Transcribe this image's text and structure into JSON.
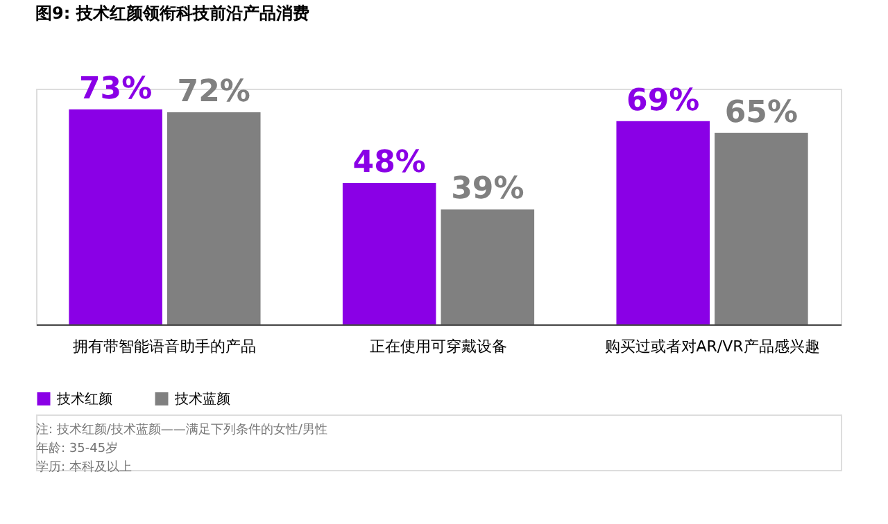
{
  "chart_data": {
    "type": "bar",
    "title": "图9: 技术红颜领衔科技前沿产品消费",
    "categories": [
      "拥有带智能语音助手的产品",
      "正在使用可穿戴设备",
      "购买过或者对AR/VR产品感兴趣"
    ],
    "series": [
      {
        "name": "技术红颜",
        "color": "#8a00e6",
        "values": [
          73,
          48,
          69
        ],
        "value_labels": [
          "73%",
          "48%",
          "69%"
        ]
      },
      {
        "name": "技术蓝颜",
        "color": "#808080",
        "values": [
          72,
          39,
          65
        ],
        "value_labels": [
          "72%",
          "39%",
          "65%"
        ]
      }
    ],
    "legend": "bottom left",
    "grid": false,
    "annotations": [
      "注: 技术红颜/技术蓝颜——满足下列条件的女性/男性",
      "年龄: 35-45岁",
      "学历: 本科及以上"
    ]
  }
}
